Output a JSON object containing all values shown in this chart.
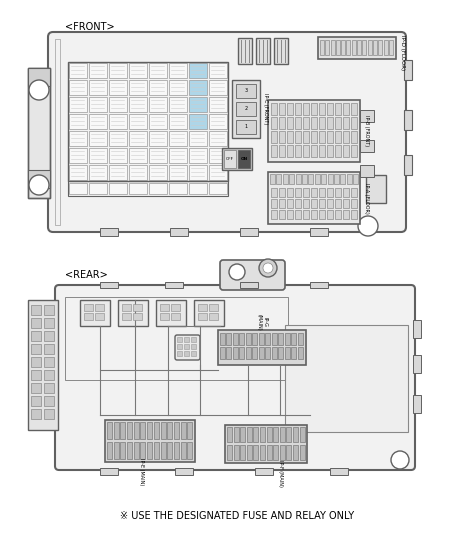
{
  "bg_color": "#ffffff",
  "lc": "#606060",
  "lc2": "#888888",
  "fc_box": "#f2f2f2",
  "fc_cell": "#ebebeb",
  "fc_mid": "#d4d4d4",
  "fc_dark": "#b8b8b8",
  "blue_fill": "#aed6e8",
  "front_label": "<FRONT>",
  "rear_label": "<REAR>",
  "footer": "※ USE THE DESIGNATED FUSE AND RELAY ONLY"
}
